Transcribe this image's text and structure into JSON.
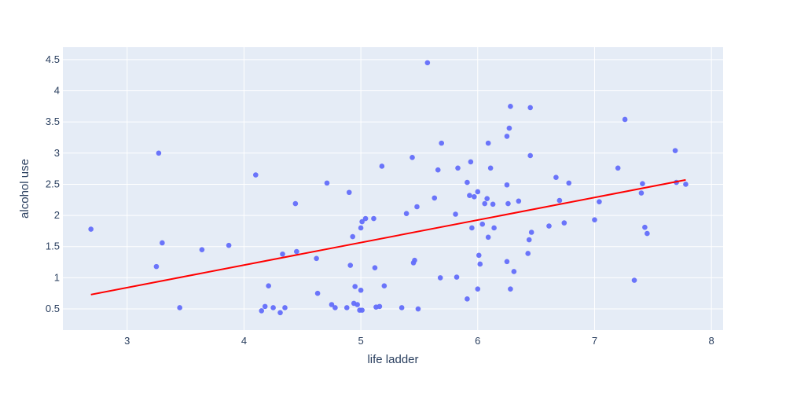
{
  "chart_data": {
    "type": "scatter",
    "xlabel": "life ladder",
    "ylabel": "alcohol use",
    "xlim": [
      2.45,
      8.1
    ],
    "ylim": [
      0.16,
      4.7
    ],
    "xticks": [
      3,
      4,
      5,
      6,
      7,
      8
    ],
    "yticks": [
      0.5,
      1,
      1.5,
      2,
      2.5,
      3,
      3.5,
      4,
      4.5
    ],
    "ytick_labels": [
      "0.5",
      "1",
      "1.5",
      "2",
      "2.5",
      "3",
      "3.5",
      "4",
      "4.5"
    ],
    "xtick_labels": [
      "3",
      "4",
      "5",
      "6",
      "7",
      "8"
    ],
    "grid": true,
    "colors": {
      "points": "#636efa",
      "trend": "#ff0000",
      "plot_bg": "#e5ecf6",
      "grid": "#ffffff",
      "text": "#2a3f5f"
    },
    "points": [
      [
        2.69,
        1.78
      ],
      [
        3.25,
        1.18
      ],
      [
        3.27,
        3.0
      ],
      [
        3.3,
        1.56
      ],
      [
        3.45,
        0.52
      ],
      [
        3.64,
        1.45
      ],
      [
        3.87,
        1.52
      ],
      [
        4.1,
        2.65
      ],
      [
        4.15,
        0.47
      ],
      [
        4.18,
        0.54
      ],
      [
        4.21,
        0.87
      ],
      [
        4.25,
        0.52
      ],
      [
        4.31,
        0.44
      ],
      [
        4.33,
        1.38
      ],
      [
        4.35,
        0.52
      ],
      [
        4.44,
        2.19
      ],
      [
        4.45,
        1.42
      ],
      [
        4.62,
        1.31
      ],
      [
        4.63,
        0.75
      ],
      [
        4.71,
        2.52
      ],
      [
        4.75,
        0.57
      ],
      [
        4.78,
        0.52
      ],
      [
        4.88,
        0.52
      ],
      [
        4.9,
        2.37
      ],
      [
        4.91,
        1.2
      ],
      [
        4.93,
        1.66
      ],
      [
        4.94,
        0.59
      ],
      [
        4.95,
        0.86
      ],
      [
        4.97,
        0.57
      ],
      [
        4.99,
        0.48
      ],
      [
        5.0,
        1.8
      ],
      [
        5.0,
        0.8
      ],
      [
        5.01,
        0.48
      ],
      [
        5.01,
        1.9
      ],
      [
        5.04,
        1.95
      ],
      [
        5.11,
        1.95
      ],
      [
        5.12,
        1.16
      ],
      [
        5.13,
        0.53
      ],
      [
        5.16,
        0.54
      ],
      [
        5.18,
        2.79
      ],
      [
        5.2,
        0.87
      ],
      [
        5.35,
        0.52
      ],
      [
        5.39,
        2.03
      ],
      [
        5.44,
        2.93
      ],
      [
        5.45,
        1.24
      ],
      [
        5.46,
        1.28
      ],
      [
        5.48,
        2.14
      ],
      [
        5.49,
        0.5
      ],
      [
        5.57,
        4.45
      ],
      [
        5.63,
        2.28
      ],
      [
        5.66,
        2.73
      ],
      [
        5.68,
        1.0
      ],
      [
        5.69,
        3.16
      ],
      [
        5.81,
        2.02
      ],
      [
        5.82,
        1.01
      ],
      [
        5.83,
        2.76
      ],
      [
        5.91,
        2.53
      ],
      [
        5.91,
        0.66
      ],
      [
        5.93,
        2.32
      ],
      [
        5.94,
        2.86
      ],
      [
        5.95,
        1.8
      ],
      [
        5.97,
        2.3
      ],
      [
        6.0,
        2.38
      ],
      [
        6.0,
        0.82
      ],
      [
        6.01,
        1.36
      ],
      [
        6.02,
        1.22
      ],
      [
        6.04,
        1.86
      ],
      [
        6.06,
        2.19
      ],
      [
        6.08,
        2.27
      ],
      [
        6.09,
        1.65
      ],
      [
        6.09,
        3.16
      ],
      [
        6.11,
        2.76
      ],
      [
        6.13,
        2.18
      ],
      [
        6.14,
        1.8
      ],
      [
        6.25,
        3.27
      ],
      [
        6.25,
        1.26
      ],
      [
        6.25,
        2.49
      ],
      [
        6.26,
        2.19
      ],
      [
        6.27,
        3.4
      ],
      [
        6.28,
        3.75
      ],
      [
        6.28,
        0.82
      ],
      [
        6.31,
        1.1
      ],
      [
        6.35,
        2.23
      ],
      [
        6.43,
        1.39
      ],
      [
        6.44,
        1.61
      ],
      [
        6.45,
        2.96
      ],
      [
        6.45,
        3.73
      ],
      [
        6.46,
        1.73
      ],
      [
        6.61,
        1.83
      ],
      [
        6.67,
        2.61
      ],
      [
        6.7,
        2.24
      ],
      [
        6.74,
        1.88
      ],
      [
        6.78,
        2.52
      ],
      [
        7.0,
        1.93
      ],
      [
        7.04,
        2.22
      ],
      [
        7.2,
        2.76
      ],
      [
        7.26,
        3.54
      ],
      [
        7.34,
        0.96
      ],
      [
        7.4,
        2.36
      ],
      [
        7.41,
        2.51
      ],
      [
        7.43,
        1.81
      ],
      [
        7.45,
        1.71
      ],
      [
        7.69,
        3.04
      ],
      [
        7.7,
        2.53
      ],
      [
        7.78,
        2.5
      ]
    ],
    "trendline": [
      [
        2.69,
        0.73
      ],
      [
        7.78,
        2.57
      ]
    ]
  }
}
